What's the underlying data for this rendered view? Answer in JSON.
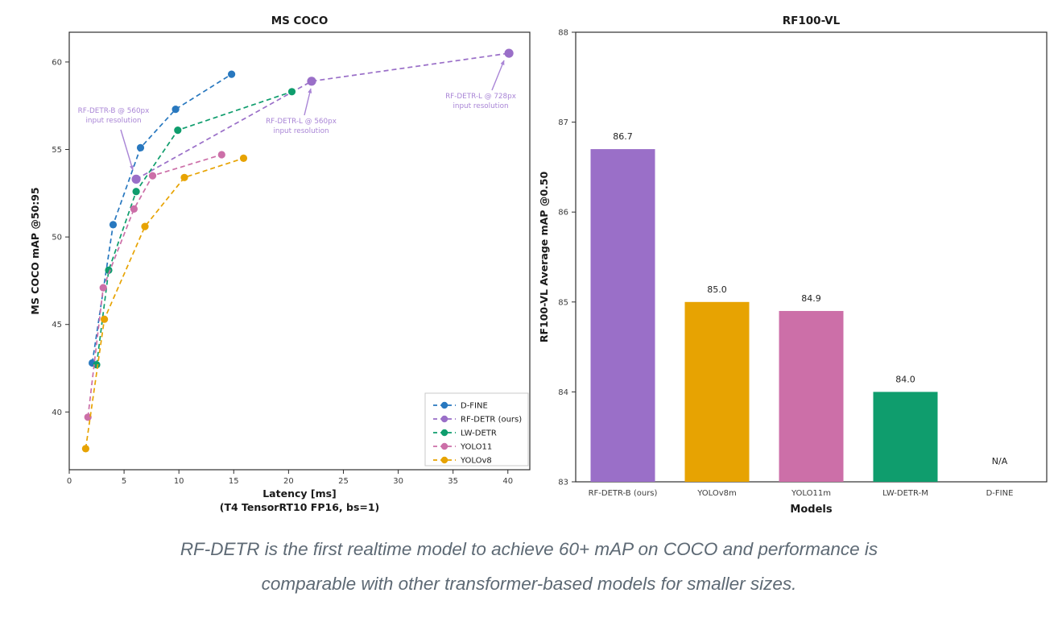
{
  "caption": {
    "line1": "RF-DETR is the first realtime model to achieve 60+ mAP on COCO and performance is",
    "line2": "comparable with other transformer-based models for smaller sizes."
  },
  "colors": {
    "d_fine_blue": "#2878bf",
    "rf_detr_purple": "#9a6fc8",
    "lw_detr_green": "#0f9d6d",
    "yolo11_pink": "#cc6fa8",
    "yolov8_orange": "#e7a302",
    "annotation_purple": "#a985d6",
    "axis_dark": "#2e2e2e",
    "caption_gray": "#5d6974"
  },
  "chart_data": [
    {
      "type": "line",
      "title": "MS COCO",
      "xlabel": "Latency [ms]",
      "xlabel_sub": "(T4 TensorRT10 FP16, bs=1)",
      "ylabel": "MS COCO mAP @50:95",
      "xlim": [
        0,
        42
      ],
      "ylim": [
        36.7,
        61.7
      ],
      "xticks": [
        0,
        5,
        10,
        15,
        20,
        25,
        30,
        35,
        40
      ],
      "yticks": [
        40,
        45,
        50,
        55,
        60
      ],
      "grid": false,
      "line_style": "dashed",
      "marker": "circle",
      "legend_position": "lower right",
      "legend_entries": [
        "D-FINE",
        "RF-DETR (ours)",
        "LW-DETR",
        "YOLO11",
        "YOLOv8"
      ],
      "series": [
        {
          "name": "D-FINE",
          "color": "#2878bf",
          "points": [
            [
              2.1,
              42.8
            ],
            [
              4.0,
              50.7
            ],
            [
              6.5,
              55.1
            ],
            [
              9.7,
              57.3
            ],
            [
              14.8,
              59.3
            ]
          ]
        },
        {
          "name": "RF-DETR (ours)",
          "color": "#9a6fc8",
          "points": [
            [
              6.1,
              53.3
            ],
            [
              22.1,
              58.9
            ],
            [
              40.1,
              60.5
            ]
          ]
        },
        {
          "name": "LW-DETR",
          "color": "#0f9d6d",
          "points": [
            [
              2.5,
              42.7
            ],
            [
              3.6,
              48.1
            ],
            [
              6.1,
              52.6
            ],
            [
              9.9,
              56.1
            ],
            [
              20.3,
              58.3
            ]
          ]
        },
        {
          "name": "YOLO11",
          "color": "#cc6fa8",
          "points": [
            [
              1.7,
              39.7
            ],
            [
              3.1,
              47.1
            ],
            [
              5.9,
              51.6
            ],
            [
              7.6,
              53.5
            ],
            [
              13.9,
              54.7
            ]
          ]
        },
        {
          "name": "YOLOv8",
          "color": "#e7a302",
          "points": [
            [
              1.5,
              37.9
            ],
            [
              3.2,
              45.3
            ],
            [
              6.9,
              50.6
            ],
            [
              10.5,
              53.4
            ],
            [
              15.9,
              54.5
            ]
          ]
        }
      ],
      "annotations": [
        {
          "lines": [
            "RF-DETR-B @ 560px",
            "input resolution"
          ],
          "target_point": [
            6.1,
            53.3
          ]
        },
        {
          "lines": [
            "RF-DETR-L @ 560px",
            "input resolution"
          ],
          "target_point": [
            22.1,
            58.9
          ]
        },
        {
          "lines": [
            "RF-DETR-L @ 728px",
            "input resolution"
          ],
          "target_point": [
            40.1,
            60.5
          ]
        }
      ]
    },
    {
      "type": "bar",
      "title": "RF100-VL",
      "xlabel": "Models",
      "ylabel": "RF100-VL Average mAP @0.50",
      "ylim": [
        83,
        88
      ],
      "yticks": [
        83,
        84,
        85,
        86,
        87,
        88
      ],
      "grid": false,
      "categories": [
        "RF-DETR-B (ours)",
        "YOLOv8m",
        "YOLO11m",
        "LW-DETR-M",
        "D-FINE"
      ],
      "values": [
        86.7,
        85.0,
        84.9,
        84.0,
        null
      ],
      "value_labels": [
        "86.7",
        "85.0",
        "84.9",
        "84.0",
        "N/A"
      ],
      "bar_colors": [
        "#9a6fc8",
        "#e7a302",
        "#cc6fa8",
        "#0f9d6d",
        "#2878bf"
      ]
    }
  ]
}
